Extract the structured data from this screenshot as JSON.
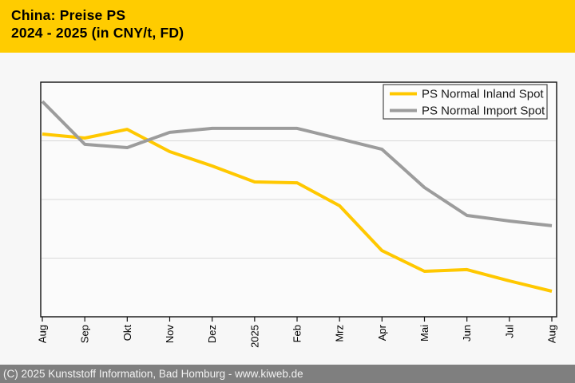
{
  "header": {
    "title": "China: Preise PS",
    "subtitle": "2024 - 2025 (in CNY/t, FD)",
    "bg_color": "#ffcc00"
  },
  "footer": {
    "text": "(C) 2025 Kunststoff Information, Bad Homburg - www.kiweb.de",
    "bg_color": "#7f7f7f"
  },
  "chart_data": {
    "type": "line",
    "title": "China: Preise PS",
    "subtitle": "2024 - 2025 (in CNY/t, FD)",
    "unit": "CNY/t, FD",
    "categories": [
      "Aug",
      "Sep",
      "Okt",
      "Nov",
      "Dez",
      "2025",
      "Feb",
      "Mrz",
      "Apr",
      "Mai",
      "Jun",
      "Jul",
      "Aug"
    ],
    "series": [
      {
        "name": "PS Normal Inland Spot",
        "color": "#ffc800",
        "values": [
          77.9,
          76.2,
          79.9,
          70.4,
          64.3,
          57.5,
          57.1,
          47.3,
          28.2,
          19.4,
          20.1,
          15.3,
          10.9
        ]
      },
      {
        "name": "PS Normal Import Spot",
        "color": "#9c9c9c",
        "values": [
          91.8,
          73.5,
          72.1,
          78.6,
          80.3,
          80.3,
          80.3,
          75.9,
          71.4,
          55.1,
          43.2,
          40.8,
          38.8
        ]
      }
    ],
    "xlabel": "",
    "ylabel": "",
    "ylim": [
      0,
      100
    ],
    "y_axis_labels_visible": false,
    "note": "y-axis has no numeric tick labels in the source image; series values are percent of plot height from the bottom axis",
    "grid": "horizontal",
    "legend_position": "top-right"
  }
}
